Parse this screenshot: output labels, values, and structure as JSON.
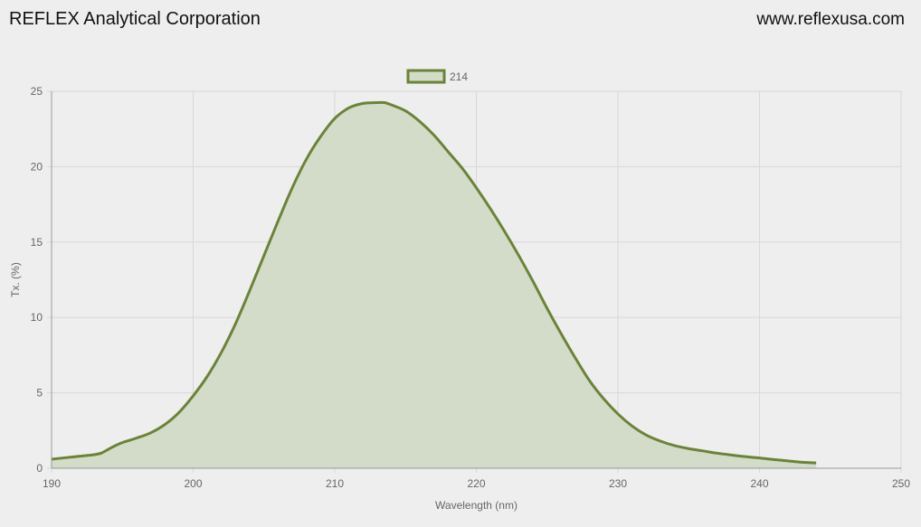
{
  "header": {
    "company": "REFLEX Analytical Corporation",
    "website": "www.reflexusa.com"
  },
  "chart_data": {
    "type": "area",
    "xlabel": "Wavelength (nm)",
    "ylabel": "Tx. (%)",
    "xlim": [
      190,
      250
    ],
    "ylim": [
      0,
      25
    ],
    "xticks": [
      190,
      200,
      210,
      220,
      230,
      240,
      250
    ],
    "yticks": [
      0,
      5,
      10,
      15,
      20,
      25
    ],
    "grid": true,
    "legend_position": "top-center",
    "colors": {
      "line": "#6b8339",
      "fill": "#d3dcc9",
      "grid": "#d8d8d8",
      "axis": "#999999"
    },
    "series": [
      {
        "name": "214",
        "x": [
          190,
          191,
          192,
          193,
          193.5,
          194,
          194.5,
          195,
          196,
          197,
          198,
          199,
          200,
          201,
          202,
          203,
          204,
          205,
          206,
          207,
          208,
          209,
          210,
          211,
          212,
          213,
          213.5,
          214,
          215,
          216,
          217,
          218,
          219,
          220,
          221,
          222,
          223,
          224,
          225,
          226,
          227,
          228,
          229,
          230,
          231,
          232,
          233,
          234,
          235,
          236,
          237,
          238,
          239,
          240,
          241,
          242,
          243,
          244
        ],
        "y": [
          0.6,
          0.7,
          0.8,
          0.9,
          1.0,
          1.25,
          1.5,
          1.7,
          2.0,
          2.35,
          2.9,
          3.7,
          4.8,
          6.1,
          7.7,
          9.6,
          11.8,
          14.1,
          16.4,
          18.6,
          20.5,
          22.0,
          23.2,
          23.9,
          24.2,
          24.25,
          24.25,
          24.1,
          23.7,
          23.0,
          22.1,
          21.0,
          19.9,
          18.6,
          17.2,
          15.7,
          14.1,
          12.4,
          10.6,
          8.9,
          7.3,
          5.8,
          4.6,
          3.6,
          2.8,
          2.2,
          1.8,
          1.5,
          1.3,
          1.15,
          1.0,
          0.88,
          0.77,
          0.68,
          0.58,
          0.49,
          0.4,
          0.35
        ]
      }
    ]
  }
}
